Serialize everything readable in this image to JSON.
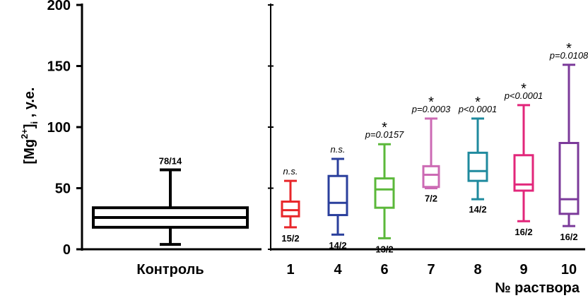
{
  "chart_data": {
    "type": "box",
    "ylabel": "[Mg²⁺]ᵢ , у.е.",
    "ylabel_parts": {
      "pre": "[Mg",
      "sup": "2+",
      "mid": "]",
      "sub": "i",
      "post": " , у.е."
    },
    "xlabel": "№ раствора",
    "ylim": [
      0,
      200
    ],
    "yticks": [
      "0",
      "50",
      "100",
      "150",
      "200"
    ],
    "groups": [
      {
        "category": "Контроль",
        "min": 4,
        "q1": 18,
        "median": 26,
        "q3": 34,
        "max": 65,
        "n": "78/14",
        "p": "",
        "star": "",
        "color": "#000000"
      },
      {
        "category": "1",
        "min": 18,
        "q1": 27,
        "median": 32,
        "q3": 39,
        "max": 56,
        "n": "15/2",
        "p": "n.s.",
        "star": "",
        "color": "#e8262a"
      },
      {
        "category": "4",
        "min": 12,
        "q1": 28,
        "median": 38,
        "q3": 60,
        "max": 74,
        "n": "14/2",
        "p": "n.s.",
        "star": "",
        "color": "#2a3f9c"
      },
      {
        "category": "6",
        "min": 9,
        "q1": 34,
        "median": 49,
        "q3": 58,
        "max": 86,
        "n": "13/2",
        "p": "p=0.0157",
        "star": "*",
        "color": "#5bb83a"
      },
      {
        "category": "7",
        "min": 50,
        "q1": 51,
        "median": 61,
        "q3": 68,
        "max": 107,
        "n": "7/2",
        "p": "p=0.0003",
        "star": "*",
        "color": "#cc6ab4"
      },
      {
        "category": "8",
        "min": 41,
        "q1": 56,
        "median": 64,
        "q3": 79,
        "max": 107,
        "n": "14/2",
        "p": "p<0.0001",
        "star": "*",
        "color": "#1f8a9e"
      },
      {
        "category": "9",
        "min": 23,
        "q1": 48,
        "median": 53,
        "q3": 77,
        "max": 118,
        "n": "16/2",
        "p": "p<0.0001",
        "star": "*",
        "color": "#e2267a"
      },
      {
        "category": "10",
        "min": 19,
        "q1": 29,
        "median": 41,
        "q3": 87,
        "max": 151,
        "n": "16/2",
        "p": "p=0.0108",
        "star": "*",
        "color": "#7b3a9a"
      }
    ]
  }
}
